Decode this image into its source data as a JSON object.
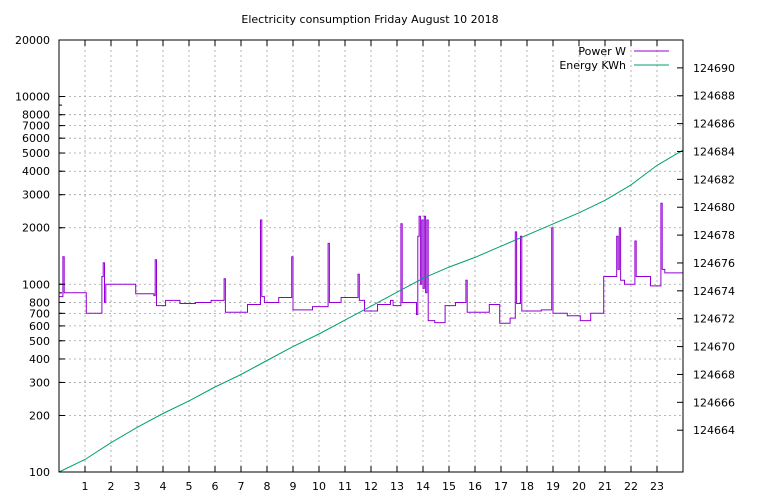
{
  "chart_data": {
    "type": "line",
    "title": "Electricity consumption Friday August 10 2018",
    "xlabel": "",
    "ylabel": "",
    "y2label": "",
    "grid": true,
    "legend_position": "top-right",
    "x_range": [
      0,
      24
    ],
    "y_range": [
      100,
      20000
    ],
    "y_scale": "log",
    "y2_range": [
      124661,
      124692
    ],
    "x_ticks": [
      1,
      2,
      3,
      4,
      5,
      6,
      7,
      8,
      9,
      10,
      11,
      12,
      13,
      14,
      15,
      16,
      17,
      18,
      19,
      20,
      21,
      22,
      23
    ],
    "y_ticks": [
      100,
      200,
      300,
      400,
      500,
      600,
      700,
      800,
      1000,
      2000,
      3000,
      4000,
      5000,
      6000,
      7000,
      8000,
      10000,
      20000
    ],
    "y_tick_labels": [
      "100",
      "200",
      "300",
      "400",
      "500",
      "600",
      "700",
      "800",
      "1000",
      "2000",
      "3000",
      "4000",
      "5000",
      "6000",
      "7000",
      "8000",
      "10000",
      "20000"
    ],
    "y2_ticks": [
      124664,
      124666,
      124668,
      124670,
      124672,
      124674,
      124676,
      124678,
      124680,
      124682,
      124684,
      124686,
      124688,
      124690
    ],
    "series": [
      {
        "name": "Power W",
        "axis": "y",
        "color": "#9400d3",
        "step": true,
        "points": [
          [
            0.0,
            860
          ],
          [
            0.15,
            1400
          ],
          [
            0.2,
            900
          ],
          [
            1.0,
            900
          ],
          [
            1.05,
            700
          ],
          [
            1.6,
            700
          ],
          [
            1.65,
            1100
          ],
          [
            1.7,
            1300
          ],
          [
            1.75,
            800
          ],
          [
            1.8,
            1000
          ],
          [
            2.0,
            1000
          ],
          [
            2.9,
            1000
          ],
          [
            2.95,
            890
          ],
          [
            3.6,
            890
          ],
          [
            3.65,
            870
          ],
          [
            3.7,
            1350
          ],
          [
            3.75,
            770
          ],
          [
            4.0,
            770
          ],
          [
            4.1,
            820
          ],
          [
            4.6,
            820
          ],
          [
            4.65,
            790
          ],
          [
            5.2,
            790
          ],
          [
            5.25,
            800
          ],
          [
            5.8,
            800
          ],
          [
            5.85,
            820
          ],
          [
            6.3,
            820
          ],
          [
            6.35,
            1070
          ],
          [
            6.4,
            710
          ],
          [
            7.2,
            710
          ],
          [
            7.25,
            780
          ],
          [
            7.7,
            780
          ],
          [
            7.75,
            2200
          ],
          [
            7.8,
            860
          ],
          [
            7.9,
            800
          ],
          [
            8.4,
            800
          ],
          [
            8.45,
            850
          ],
          [
            8.9,
            850
          ],
          [
            8.95,
            1400
          ],
          [
            9.0,
            730
          ],
          [
            9.7,
            730
          ],
          [
            9.75,
            760
          ],
          [
            10.3,
            760
          ],
          [
            10.35,
            1650
          ],
          [
            10.4,
            800
          ],
          [
            10.8,
            800
          ],
          [
            10.85,
            850
          ],
          [
            11.4,
            850
          ],
          [
            11.5,
            1130
          ],
          [
            11.55,
            820
          ],
          [
            11.7,
            820
          ],
          [
            11.75,
            720
          ],
          [
            12.2,
            720
          ],
          [
            12.25,
            780
          ],
          [
            12.7,
            780
          ],
          [
            12.75,
            820
          ],
          [
            12.85,
            770
          ],
          [
            13.1,
            770
          ],
          [
            13.15,
            2100
          ],
          [
            13.2,
            800
          ],
          [
            13.7,
            800
          ],
          [
            13.75,
            690
          ],
          [
            13.8,
            1800
          ],
          [
            13.85,
            2300
          ],
          [
            13.9,
            1000
          ],
          [
            13.95,
            2200
          ],
          [
            14.0,
            950
          ],
          [
            14.05,
            2300
          ],
          [
            14.1,
            900
          ],
          [
            14.15,
            2200
          ],
          [
            14.2,
            640
          ],
          [
            14.4,
            640
          ],
          [
            14.45,
            625
          ],
          [
            14.8,
            625
          ],
          [
            14.85,
            770
          ],
          [
            15.2,
            770
          ],
          [
            15.25,
            800
          ],
          [
            15.6,
            800
          ],
          [
            15.65,
            1050
          ],
          [
            15.7,
            710
          ],
          [
            16.5,
            710
          ],
          [
            16.55,
            780
          ],
          [
            16.9,
            780
          ],
          [
            16.95,
            620
          ],
          [
            17.3,
            620
          ],
          [
            17.35,
            660
          ],
          [
            17.5,
            660
          ],
          [
            17.55,
            1900
          ],
          [
            17.6,
            790
          ],
          [
            17.7,
            790
          ],
          [
            17.75,
            1800
          ],
          [
            17.8,
            720
          ],
          [
            18.5,
            720
          ],
          [
            18.55,
            730
          ],
          [
            18.9,
            730
          ],
          [
            18.95,
            2000
          ],
          [
            19.0,
            700
          ],
          [
            19.5,
            700
          ],
          [
            19.55,
            680
          ],
          [
            20.0,
            680
          ],
          [
            20.05,
            640
          ],
          [
            20.4,
            640
          ],
          [
            20.45,
            700
          ],
          [
            20.9,
            700
          ],
          [
            20.95,
            1100
          ],
          [
            21.4,
            1100
          ],
          [
            21.45,
            1800
          ],
          [
            21.5,
            1200
          ],
          [
            21.55,
            2000
          ],
          [
            21.6,
            1050
          ],
          [
            21.7,
            1050
          ],
          [
            21.75,
            1000
          ],
          [
            22.1,
            1000
          ],
          [
            22.15,
            1700
          ],
          [
            22.2,
            1100
          ],
          [
            22.7,
            1100
          ],
          [
            22.75,
            980
          ],
          [
            23.1,
            980
          ],
          [
            23.15,
            2700
          ],
          [
            23.2,
            1200
          ],
          [
            23.3,
            1150
          ],
          [
            24.0,
            1150
          ]
        ]
      },
      {
        "name": "Energy KWh",
        "axis": "y2",
        "color": "#009e73",
        "step": false,
        "points": [
          [
            0.0,
            124661.0
          ],
          [
            1.0,
            124661.9
          ],
          [
            2.0,
            124663.1
          ],
          [
            3.0,
            124664.2
          ],
          [
            4.0,
            124665.2
          ],
          [
            5.0,
            124666.1
          ],
          [
            6.0,
            124667.1
          ],
          [
            7.0,
            124668.0
          ],
          [
            8.0,
            124669.0
          ],
          [
            9.0,
            124670.0
          ],
          [
            10.0,
            124670.9
          ],
          [
            11.0,
            124671.9
          ],
          [
            12.0,
            124672.9
          ],
          [
            13.0,
            124673.9
          ],
          [
            14.0,
            124674.9
          ],
          [
            15.0,
            124675.7
          ],
          [
            16.0,
            124676.4
          ],
          [
            17.0,
            124677.2
          ],
          [
            18.0,
            124678.0
          ],
          [
            19.0,
            124678.8
          ],
          [
            20.0,
            124679.6
          ],
          [
            21.0,
            124680.5
          ],
          [
            22.0,
            124681.6
          ],
          [
            23.0,
            124683.0
          ],
          [
            24.0,
            124684.1
          ]
        ]
      }
    ]
  }
}
